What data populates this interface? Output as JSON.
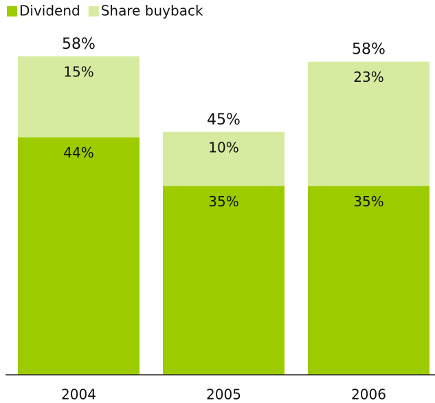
{
  "chart_data": {
    "type": "stacked_bar",
    "categories": [
      "2004",
      "2005",
      "2006"
    ],
    "series": [
      {
        "name": "Dividend",
        "color": "#9ccb00",
        "values": [
          44,
          35,
          35
        ],
        "value_labels": [
          "44%",
          "35%",
          "35%"
        ]
      },
      {
        "name": "Share buyback",
        "color": "#d7eba0",
        "values": [
          15,
          10,
          23
        ],
        "value_labels": [
          "15%",
          "10%",
          "23%"
        ]
      }
    ],
    "totals": [
      58,
      45,
      58
    ],
    "total_labels": [
      "58%",
      "45%",
      "58%"
    ]
  }
}
